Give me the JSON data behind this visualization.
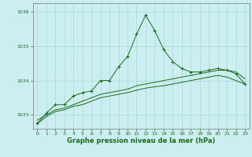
{
  "title": "Graphe pression niveau de la mer (hPa)",
  "bg_color": "#cceef0",
  "grid_color": "#aad8d8",
  "line_color": "#1a6b1a",
  "xlim": [
    -0.5,
    23.5
  ],
  "ylim": [
    1032.6,
    1036.25
  ],
  "yticks": [
    1033,
    1034,
    1035,
    1036
  ],
  "xticks": [
    0,
    1,
    2,
    3,
    4,
    5,
    6,
    7,
    8,
    9,
    10,
    11,
    12,
    13,
    14,
    15,
    16,
    17,
    18,
    19,
    20,
    21,
    22,
    23
  ],
  "series1_x": [
    0,
    1,
    2,
    3,
    4,
    5,
    6,
    7,
    8,
    9,
    10,
    11,
    12,
    13,
    14,
    15,
    16,
    17,
    18,
    19,
    20,
    21,
    22,
    23
  ],
  "series1_y": [
    1032.75,
    1033.05,
    1033.3,
    1033.3,
    1033.55,
    1033.65,
    1033.7,
    1034.0,
    1034.0,
    1034.4,
    1034.7,
    1035.35,
    1035.9,
    1035.45,
    1034.9,
    1034.55,
    1034.35,
    1034.25,
    1034.25,
    1034.3,
    1034.35,
    1034.3,
    1034.2,
    1033.9
  ],
  "series2_x": [
    0,
    1,
    2,
    3,
    4,
    5,
    6,
    7,
    8,
    9,
    10,
    11,
    12,
    13,
    14,
    15,
    16,
    17,
    18,
    19,
    20,
    21,
    22,
    23
  ],
  "series2_y": [
    1032.85,
    1033.0,
    1033.15,
    1033.2,
    1033.3,
    1033.4,
    1033.5,
    1033.6,
    1033.65,
    1033.7,
    1033.75,
    1033.85,
    1033.9,
    1033.95,
    1034.0,
    1034.05,
    1034.1,
    1034.15,
    1034.2,
    1034.25,
    1034.3,
    1034.3,
    1034.25,
    1034.05
  ],
  "series3_x": [
    0,
    1,
    2,
    3,
    4,
    5,
    6,
    7,
    8,
    9,
    10,
    11,
    12,
    13,
    14,
    15,
    16,
    17,
    18,
    19,
    20,
    21,
    22,
    23
  ],
  "series3_y": [
    1032.75,
    1032.95,
    1033.1,
    1033.15,
    1033.25,
    1033.3,
    1033.4,
    1033.5,
    1033.55,
    1033.6,
    1033.65,
    1033.72,
    1033.78,
    1033.82,
    1033.85,
    1033.9,
    1033.95,
    1034.0,
    1034.05,
    1034.1,
    1034.15,
    1034.1,
    1034.0,
    1033.9
  ],
  "title_fontsize": 6.0,
  "tick_fontsize": 4.5
}
